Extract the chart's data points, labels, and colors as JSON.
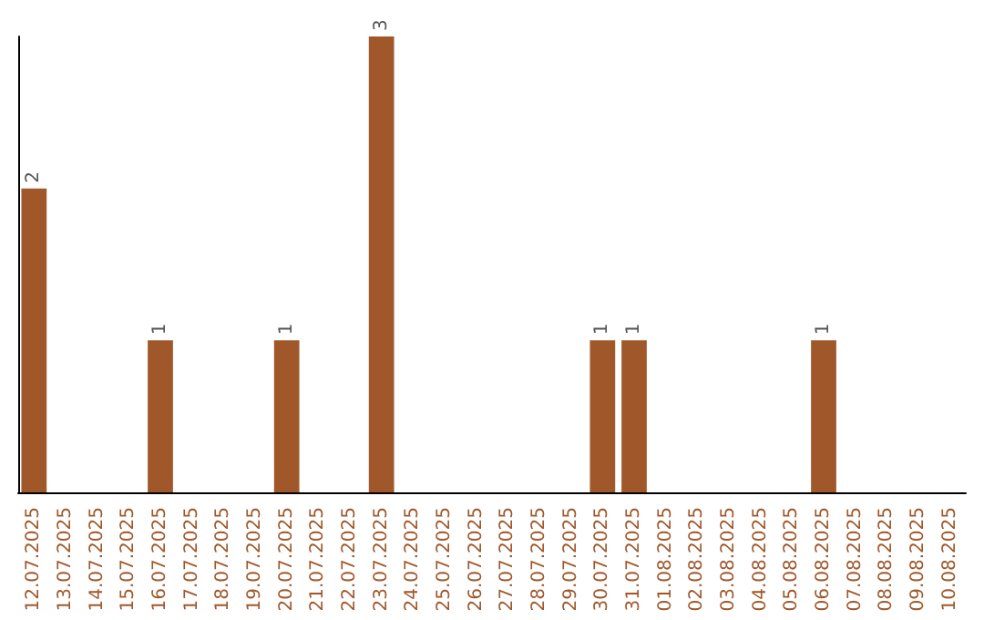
{
  "chart_data": {
    "type": "bar",
    "categories": [
      "12.07.2025",
      "13.07.2025",
      "14.07.2025",
      "15.07.2025",
      "16.07.2025",
      "17.07.2025",
      "18.07.2025",
      "19.07.2025",
      "20.07.2025",
      "21.07.2025",
      "22.07.2025",
      "23.07.2025",
      "24.07.2025",
      "25.07.2025",
      "26.07.2025",
      "27.07.2025",
      "28.07.2025",
      "29.07.2025",
      "30.07.2025",
      "31.07.2025",
      "01.08.2025",
      "02.08.2025",
      "03.08.2025",
      "04.08.2025",
      "05.08.2025",
      "06.08.2025",
      "07.08.2025",
      "08.08.2025",
      "09.08.2025",
      "10.08.2025"
    ],
    "values": [
      2,
      0,
      0,
      0,
      1,
      0,
      0,
      0,
      1,
      0,
      0,
      3,
      0,
      0,
      0,
      0,
      0,
      0,
      1,
      1,
      0,
      0,
      0,
      0,
      0,
      1,
      0,
      0,
      0,
      0
    ],
    "value_labels": [
      "2",
      null,
      null,
      null,
      "1",
      null,
      null,
      null,
      "1",
      null,
      null,
      "3",
      null,
      null,
      null,
      null,
      null,
      null,
      "1",
      "1",
      null,
      null,
      null,
      null,
      null,
      "1",
      null,
      null,
      null,
      null
    ],
    "color": "#a0582b",
    "tick_labels": "x",
    "grid": false
  }
}
